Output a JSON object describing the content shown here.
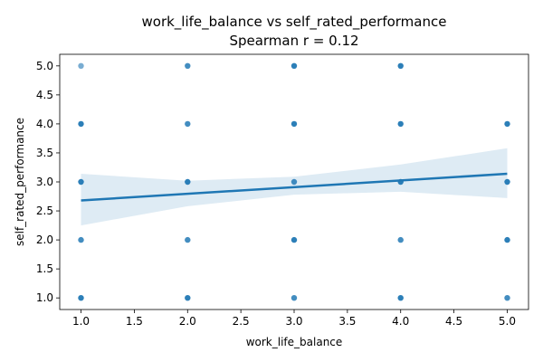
{
  "chart_data": {
    "type": "scatter",
    "title": "work_life_balance vs self_rated_performance",
    "subtitle": "Spearman r = 0.12",
    "xlabel": "work_life_balance",
    "ylabel": "self_rated_performance",
    "xlim": [
      0.8,
      5.2
    ],
    "ylim": [
      0.8,
      5.2
    ],
    "xticks": [
      "1.0",
      "1.5",
      "2.0",
      "2.5",
      "3.0",
      "3.5",
      "4.0",
      "4.5",
      "5.0"
    ],
    "yticks": [
      "1.0",
      "1.5",
      "2.0",
      "2.5",
      "3.0",
      "3.5",
      "4.0",
      "4.5",
      "5.0"
    ],
    "grid": false,
    "point_color": "#1f77b4",
    "points": [
      {
        "x": 1,
        "y": 5,
        "n": 1
      },
      {
        "x": 1,
        "y": 4,
        "n": 3
      },
      {
        "x": 1,
        "y": 3,
        "n": 3
      },
      {
        "x": 1,
        "y": 2,
        "n": 2
      },
      {
        "x": 1,
        "y": 1,
        "n": 3
      },
      {
        "x": 2,
        "y": 5,
        "n": 2
      },
      {
        "x": 2,
        "y": 4,
        "n": 2
      },
      {
        "x": 2,
        "y": 3,
        "n": 3
      },
      {
        "x": 2,
        "y": 2,
        "n": 2
      },
      {
        "x": 2,
        "y": 1,
        "n": 3
      },
      {
        "x": 3,
        "y": 5,
        "n": 3
      },
      {
        "x": 3,
        "y": 4,
        "n": 3
      },
      {
        "x": 3,
        "y": 3,
        "n": 2
      },
      {
        "x": 3,
        "y": 2,
        "n": 3
      },
      {
        "x": 3,
        "y": 1,
        "n": 2
      },
      {
        "x": 4,
        "y": 5,
        "n": 3
      },
      {
        "x": 4,
        "y": 4,
        "n": 3
      },
      {
        "x": 4,
        "y": 3,
        "n": 3
      },
      {
        "x": 4,
        "y": 2,
        "n": 2
      },
      {
        "x": 4,
        "y": 1,
        "n": 3
      },
      {
        "x": 5,
        "y": 4,
        "n": 3
      },
      {
        "x": 5,
        "y": 3,
        "n": 3
      },
      {
        "x": 5,
        "y": 2,
        "n": 3
      },
      {
        "x": 5,
        "y": 1,
        "n": 2
      }
    ],
    "regression": {
      "x": [
        1,
        5
      ],
      "y": [
        2.68,
        3.14
      ],
      "color": "#1f77b4"
    },
    "confidence_band": {
      "x": [
        1,
        2,
        3,
        4,
        5
      ],
      "lower": [
        2.25,
        2.58,
        2.78,
        2.83,
        2.72
      ],
      "upper": [
        3.14,
        3.02,
        3.09,
        3.3,
        3.58
      ],
      "color": "#1f77b4"
    }
  }
}
